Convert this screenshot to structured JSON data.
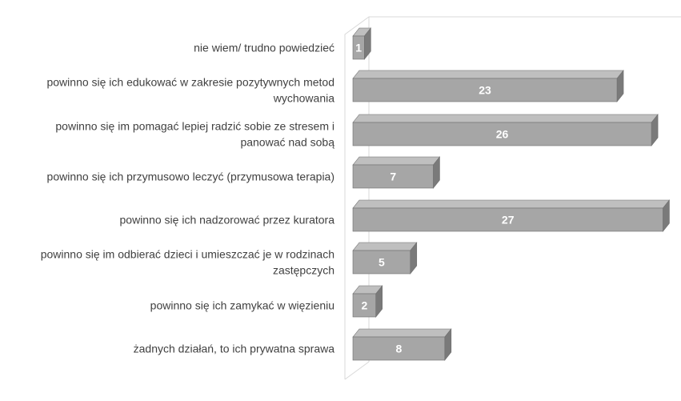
{
  "chart_data": {
    "type": "bar",
    "orientation": "horizontal",
    "style": "3d",
    "categories": [
      "nie wiem/ trudno powiedzieć",
      "powinno się ich edukować w zakresie pozytywnych metod wychowania",
      "powinno się im pomagać lepiej radzić sobie ze stresem i panować nad sobą",
      "powinno się ich przymusowo leczyć (przymusowa terapia)",
      "powinno się ich nadzorować przez kuratora",
      "powinno się im odbierać dzieci i umieszczać je w rodzinach zastępczych",
      "powinno się ich zamykać w więzieniu",
      "żadnych działań, to ich prywatna sprawa"
    ],
    "label_lines": [
      [
        "nie wiem/ trudno powiedzieć"
      ],
      [
        "powinno się ich edukować w zakresie pozytywnych metod",
        "wychowania"
      ],
      [
        "powinno się im pomagać lepiej radzić sobie ze stresem i",
        "panować nad sobą"
      ],
      [
        "powinno się ich przymusowo leczyć (przymusowa terapia)"
      ],
      [
        "powinno się ich nadzorować przez kuratora"
      ],
      [
        "powinno się im odbierać dzieci i umieszczać je w rodzinach",
        "zastępczych"
      ],
      [
        "powinno się ich zamykać w więzieniu"
      ],
      [
        "żadnych działań, to ich prywatna sprawa"
      ]
    ],
    "values": [
      1,
      23,
      26,
      7,
      27,
      5,
      2,
      8
    ],
    "data_labels": [
      "1",
      "23",
      "26",
      "7",
      "27",
      "5",
      "2",
      "8"
    ],
    "xlim": [
      0,
      28
    ],
    "grid": false,
    "legend": "none",
    "colors": {
      "bar_front": "#a6a6a6",
      "bar_top": "#bfbfbf",
      "bar_side": "#7a7a7a",
      "bar_edge": "#6e6e6e",
      "wall": "#d9d9d9",
      "label_text": "#404040",
      "value_text": "#ffffff"
    }
  }
}
